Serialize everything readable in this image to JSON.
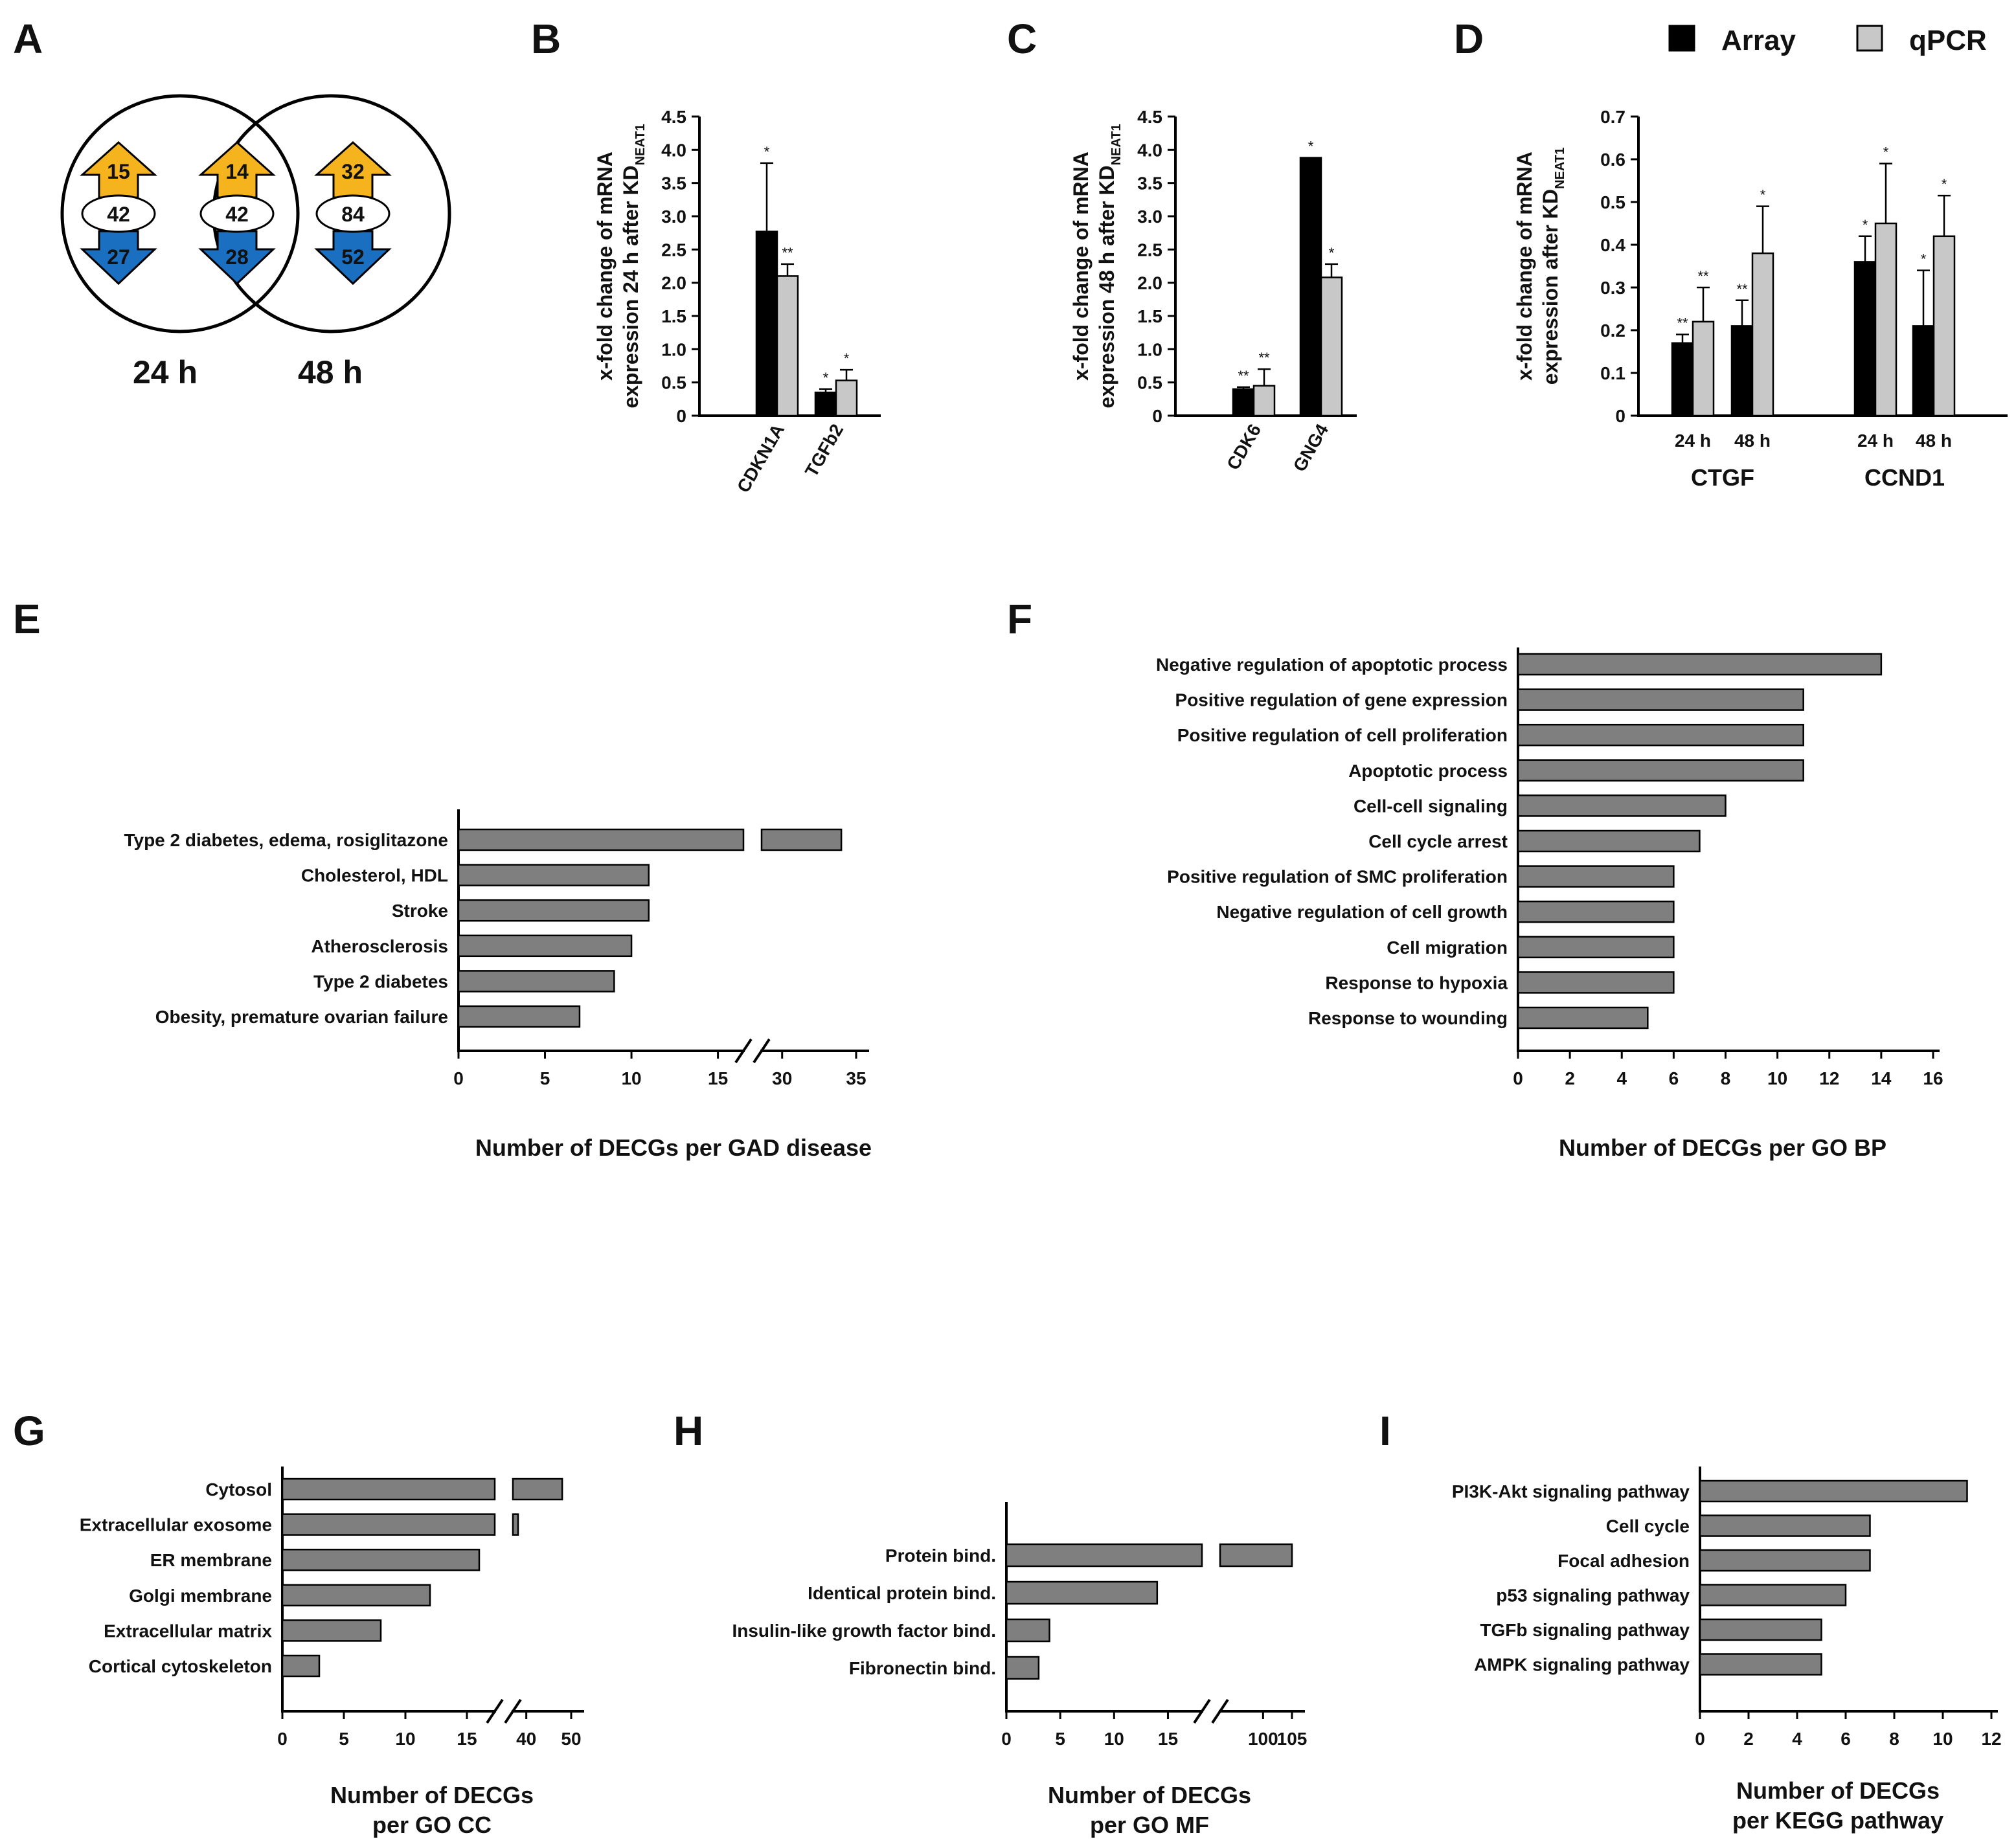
{
  "panel_labels": {
    "A": "A",
    "B": "B",
    "C": "C",
    "D": "D",
    "E": "E",
    "F": "F",
    "G": "G",
    "H": "H",
    "I": "I"
  },
  "venn": {
    "left": {
      "up": "15",
      "mid": "42",
      "down": "27",
      "time": "24 h"
    },
    "overlap": {
      "up": "14",
      "mid": "42",
      "down": "28"
    },
    "right": {
      "up": "32",
      "mid": "84",
      "down": "52",
      "time": "48 h"
    },
    "colors": {
      "up": "#f5b41d",
      "down": "#1a6fc0"
    }
  },
  "legend": {
    "array": "Array",
    "qpcr": "qPCR"
  },
  "colors": {
    "array": "#000000",
    "qpcr": "#c8c8c8",
    "bar": "#7f7f7f"
  },
  "chart_data": [
    {
      "id": "B",
      "type": "bar",
      "ylabel_line1": "x-fold change of mRNA",
      "ylabel_line2": "expression 24 h after KD",
      "ylabel_sub": "NEAT1",
      "ylim": [
        0,
        4.5
      ],
      "yticks": [
        "0",
        "0.5",
        "1.0",
        "1.5",
        "2.0",
        "2.5",
        "3.0",
        "3.5",
        "4.0",
        "4.5"
      ],
      "categories": [
        "CDKN1A",
        "TGFb2"
      ],
      "series": [
        {
          "name": "Array",
          "values": [
            2.77,
            0.35
          ],
          "err": [
            1.03,
            0.05
          ],
          "sig": [
            "*",
            "*"
          ]
        },
        {
          "name": "qPCR",
          "values": [
            2.1,
            0.53
          ],
          "err": [
            0.18,
            0.16
          ],
          "sig": [
            "**",
            "*"
          ]
        }
      ]
    },
    {
      "id": "C",
      "type": "bar",
      "ylabel_line1": "x-fold change of mRNA",
      "ylabel_line2": "expression 48 h after KD",
      "ylabel_sub": "NEAT1",
      "ylim": [
        0,
        4.5
      ],
      "yticks": [
        "0",
        "0.5",
        "1.0",
        "1.5",
        "2.0",
        "2.5",
        "3.0",
        "3.5",
        "4.0",
        "4.5"
      ],
      "categories": [
        "CDK6",
        "GNG4"
      ],
      "series": [
        {
          "name": "Array",
          "values": [
            0.4,
            3.88
          ],
          "err": [
            0.03,
            0.0
          ],
          "sig": [
            "**",
            "*"
          ]
        },
        {
          "name": "qPCR",
          "values": [
            0.45,
            2.08
          ],
          "err": [
            0.25,
            0.2
          ],
          "sig": [
            "**",
            "*"
          ]
        }
      ]
    },
    {
      "id": "D",
      "type": "bar",
      "ylabel_line1": "x-fold change of mRNA",
      "ylabel_line2": "expression after KD",
      "ylabel_sub": "NEAT1",
      "ylim": [
        0,
        0.7
      ],
      "yticks": [
        "0",
        "0.1",
        "0.2",
        "0.3",
        "0.4",
        "0.5",
        "0.6",
        "0.7"
      ],
      "categories": [
        "24 h",
        "48 h",
        "24 h",
        "48 h"
      ],
      "groups": [
        "CTGF",
        "CCND1"
      ],
      "series": [
        {
          "name": "Array",
          "values": [
            0.17,
            0.21,
            0.36,
            0.21
          ],
          "err": [
            0.02,
            0.06,
            0.06,
            0.13
          ],
          "sig": [
            "**",
            "**",
            "*",
            "*"
          ]
        },
        {
          "name": "qPCR",
          "values": [
            0.22,
            0.38,
            0.45,
            0.42
          ],
          "err": [
            0.08,
            0.11,
            0.14,
            0.095
          ],
          "sig": [
            "**",
            "*",
            "*",
            "*"
          ]
        }
      ]
    },
    {
      "id": "E",
      "type": "bar",
      "orientation": "horizontal",
      "xlabel": "Number of DECGs per GAD disease",
      "categories": [
        "Type 2 diabetes, edema, rosiglitazone",
        "Cholesterol, HDL",
        "Stroke",
        "Atherosclerosis",
        "Type 2 diabetes",
        "Obesity, premature ovarian failure"
      ],
      "values": [
        34,
        11,
        11,
        10,
        9,
        7
      ],
      "xticks_low": [
        "0",
        "5",
        "10",
        "15"
      ],
      "xticks_high": [
        "30",
        "35"
      ],
      "axis_break": [
        17,
        28
      ]
    },
    {
      "id": "F",
      "type": "bar",
      "orientation": "horizontal",
      "xlabel": "Number of DECGs per GO BP",
      "categories": [
        "Negative regulation of apoptotic process",
        "Positive regulation of gene expression",
        "Positive regulation of cell proliferation",
        "Apoptotic process",
        "Cell-cell signaling",
        "Cell cycle arrest",
        "Positive regulation of SMC proliferation",
        "Negative regulation of cell growth",
        "Cell migration",
        "Response to hypoxia",
        "Response to wounding"
      ],
      "values": [
        14,
        11,
        11,
        11,
        8,
        7,
        6,
        6,
        6,
        6,
        5
      ],
      "xlim": [
        0,
        16
      ],
      "xticks": [
        "0",
        "2",
        "4",
        "6",
        "8",
        "10",
        "12",
        "14",
        "16"
      ]
    },
    {
      "id": "G",
      "type": "bar",
      "orientation": "horizontal",
      "xlabel_line1": "Number of DECGs",
      "xlabel_line2": "per GO CC",
      "categories": [
        "Cytosol",
        "Extracellular exosome",
        "ER membrane",
        "Golgi membrane",
        "Extracellular matrix",
        "Cortical cytoskeleton"
      ],
      "values": [
        48,
        36,
        16,
        12,
        8,
        3
      ],
      "xticks_low": [
        "0",
        "5",
        "10",
        "15"
      ],
      "xticks_high": [
        "40",
        "50"
      ],
      "axis_break": [
        18,
        35
      ]
    },
    {
      "id": "H",
      "type": "bar",
      "orientation": "horizontal",
      "xlabel_line1": "Number of DECGs",
      "xlabel_line2": "per GO MF",
      "categories": [
        "Protein bind.",
        "Identical protein bind.",
        "Insulin-like growth factor bind.",
        "Fibronectin bind."
      ],
      "values": [
        105,
        14,
        4,
        3
      ],
      "xticks_low": [
        "0",
        "5",
        "10",
        "15"
      ],
      "xticks_high": [
        "100",
        "105"
      ],
      "axis_break": [
        19,
        91
      ]
    },
    {
      "id": "I",
      "type": "bar",
      "orientation": "horizontal",
      "xlabel_line1": "Number of DECGs",
      "xlabel_line2": "per KEGG pathway",
      "categories": [
        "PI3K-Akt signaling pathway",
        "Cell cycle",
        "Focal adhesion",
        "p53 signaling pathway",
        "TGFb signaling pathway",
        "AMPK signaling pathway"
      ],
      "values": [
        11,
        7,
        7,
        6,
        5,
        5
      ],
      "xlim": [
        0,
        12
      ],
      "xticks": [
        "0",
        "2",
        "4",
        "6",
        "8",
        "10",
        "12"
      ]
    }
  ]
}
